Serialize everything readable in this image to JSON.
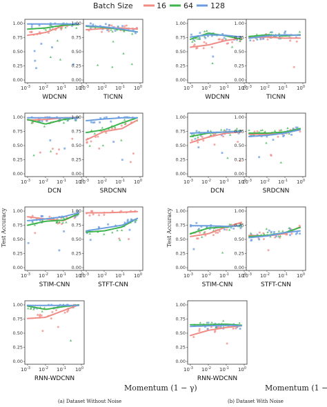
{
  "legend": {
    "title": "Batch Size",
    "entries": [
      {
        "label": "16",
        "color": "#f08a84"
      },
      {
        "label": "64",
        "color": "#3cb44b"
      },
      {
        "label": "128",
        "color": "#6a9ce0"
      }
    ]
  },
  "ylabel": "Test Accuracy",
  "xlabel": "Momentum (1 − γ)",
  "captions": {
    "a": "(a) Dataset Without Noise",
    "b": "(b) Dataset With Noise"
  },
  "chart_data": {
    "type": "scatter",
    "x_scale": "log",
    "x_ticks": [
      "10^-3",
      "10^-2",
      "10^-1",
      "10^0"
    ],
    "ylim": [
      0,
      1
    ],
    "y_ticks": [
      "0.00",
      "0.25",
      "0.50",
      "0.75",
      "1.00"
    ],
    "grid": false,
    "legend_position": "top",
    "groups": [
      {
        "caption": "(a) Dataset Without Noise",
        "panels": [
          {
            "title": "WDCNN",
            "curves": {
              "16": [
                [
                  0.001,
                  0.79
                ],
                [
                  0.01,
                  0.84
                ],
                [
                  0.1,
                  0.96
                ],
                [
                  0.7,
                  0.99
                ]
              ],
              "64": [
                [
                  0.001,
                  0.9
                ],
                [
                  0.01,
                  0.92
                ],
                [
                  0.1,
                  0.97
                ],
                [
                  0.7,
                  0.98
                ]
              ],
              "128": [
                [
                  0.001,
                  0.99
                ],
                [
                  0.01,
                  0.99
                ],
                [
                  0.1,
                  0.99
                ],
                [
                  0.7,
                  0.99
                ]
              ]
            }
          },
          {
            "title": "TICNN",
            "curves": {
              "16": [
                [
                  0.001,
                  0.89
                ],
                [
                  0.01,
                  0.91
                ],
                [
                  0.1,
                  0.92
                ],
                [
                  0.7,
                  0.9
                ]
              ],
              "64": [
                [
                  0.001,
                  0.95
                ],
                [
                  0.01,
                  0.93
                ],
                [
                  0.1,
                  0.89
                ],
                [
                  0.7,
                  0.85
                ]
              ],
              "128": [
                [
                  0.001,
                  0.96
                ],
                [
                  0.01,
                  0.94
                ],
                [
                  0.1,
                  0.9
                ],
                [
                  0.7,
                  0.85
                ]
              ]
            }
          },
          {
            "title": "DCN",
            "curves": {
              "16": [
                [
                  0.001,
                  0.95
                ],
                [
                  0.01,
                  0.96
                ],
                [
                  0.1,
                  0.99
                ],
                [
                  0.7,
                  1.0
                ]
              ],
              "64": [
                [
                  0.001,
                  0.96
                ],
                [
                  0.01,
                  0.88
                ],
                [
                  0.1,
                  0.96
                ],
                [
                  0.7,
                  1.0
                ]
              ],
              "128": [
                [
                  0.001,
                  0.99
                ],
                [
                  0.01,
                  0.99
                ],
                [
                  0.1,
                  0.99
                ],
                [
                  0.7,
                  0.99
                ]
              ]
            }
          },
          {
            "title": "SRDCNN",
            "curves": {
              "16": [
                [
                  0.001,
                  0.6
                ],
                [
                  0.01,
                  0.75
                ],
                [
                  0.1,
                  0.8
                ],
                [
                  0.7,
                  0.95
                ]
              ],
              "64": [
                [
                  0.001,
                  0.73
                ],
                [
                  0.01,
                  0.78
                ],
                [
                  0.1,
                  0.9
                ],
                [
                  0.7,
                  0.99
                ]
              ],
              "128": [
                [
                  0.001,
                  0.94
                ],
                [
                  0.01,
                  0.97
                ],
                [
                  0.1,
                  0.99
                ],
                [
                  0.7,
                  0.99
                ]
              ]
            }
          },
          {
            "title": "STIM-CNN",
            "curves": {
              "16": [
                [
                  0.001,
                  0.9
                ],
                [
                  0.01,
                  0.86
                ],
                [
                  0.1,
                  0.83
                ],
                [
                  0.7,
                  0.95
                ]
              ],
              "64": [
                [
                  0.001,
                  0.75
                ],
                [
                  0.01,
                  0.82
                ],
                [
                  0.1,
                  0.84
                ],
                [
                  0.7,
                  0.95
                ]
              ],
              "128": [
                [
                  0.001,
                  0.83
                ],
                [
                  0.01,
                  0.86
                ],
                [
                  0.1,
                  0.9
                ],
                [
                  0.7,
                  0.97
                ]
              ]
            }
          },
          {
            "title": "STFT-CNN",
            "curves": {
              "16": [
                [
                  0.001,
                  0.97
                ],
                [
                  0.01,
                  0.97
                ],
                [
                  0.1,
                  0.98
                ],
                [
                  0.7,
                  0.99
                ]
              ],
              "64": [
                [
                  0.001,
                  0.63
                ],
                [
                  0.01,
                  0.65
                ],
                [
                  0.1,
                  0.72
                ],
                [
                  0.7,
                  0.87
                ]
              ],
              "128": [
                [
                  0.001,
                  0.65
                ],
                [
                  0.01,
                  0.7
                ],
                [
                  0.1,
                  0.75
                ],
                [
                  0.7,
                  0.87
                ]
              ]
            }
          },
          {
            "title": "RNN-WDCNN",
            "curves": {
              "16": [
                [
                  0.001,
                  0.76
                ],
                [
                  0.01,
                  0.78
                ],
                [
                  0.1,
                  0.9
                ],
                [
                  0.7,
                  1.0
                ]
              ],
              "64": [
                [
                  0.001,
                  0.98
                ],
                [
                  0.01,
                  0.92
                ],
                [
                  0.1,
                  0.97
                ],
                [
                  0.7,
                  1.0
                ]
              ],
              "128": [
                [
                  0.001,
                  0.99
                ],
                [
                  0.01,
                  0.99
                ],
                [
                  0.1,
                  0.99
                ],
                [
                  0.7,
                  0.99
                ]
              ]
            }
          }
        ]
      },
      {
        "caption": "(b) Dataset With Noise",
        "panels": [
          {
            "title": "WDCNN",
            "curves": {
              "16": [
                [
                  0.001,
                  0.58
                ],
                [
                  0.01,
                  0.62
                ],
                [
                  0.1,
                  0.7
                ],
                [
                  0.7,
                  0.74
                ]
              ],
              "64": [
                [
                  0.001,
                  0.72
                ],
                [
                  0.01,
                  0.83
                ],
                [
                  0.1,
                  0.78
                ],
                [
                  0.7,
                  0.72
                ]
              ],
              "128": [
                [
                  0.001,
                  0.76
                ],
                [
                  0.01,
                  0.8
                ],
                [
                  0.1,
                  0.79
                ],
                [
                  0.7,
                  0.76
                ]
              ]
            }
          },
          {
            "title": "TICNN",
            "curves": {
              "16": [
                [
                  0.001,
                  0.75
                ],
                [
                  0.01,
                  0.76
                ],
                [
                  0.1,
                  0.74
                ],
                [
                  0.7,
                  0.74
                ]
              ],
              "64": [
                [
                  0.001,
                  0.77
                ],
                [
                  0.01,
                  0.8
                ],
                [
                  0.1,
                  0.78
                ],
                [
                  0.7,
                  0.8
                ]
              ],
              "128": [
                [
                  0.001,
                  0.74
                ],
                [
                  0.01,
                  0.78
                ],
                [
                  0.1,
                  0.8
                ],
                [
                  0.7,
                  0.79
                ]
              ]
            }
          },
          {
            "title": "DCN",
            "curves": {
              "16": [
                [
                  0.001,
                  0.55
                ],
                [
                  0.01,
                  0.65
                ],
                [
                  0.1,
                  0.72
                ],
                [
                  0.7,
                  0.74
                ]
              ],
              "64": [
                [
                  0.001,
                  0.66
                ],
                [
                  0.01,
                  0.72
                ],
                [
                  0.1,
                  0.74
                ],
                [
                  0.7,
                  0.76
                ]
              ],
              "128": [
                [
                  0.001,
                  0.72
                ],
                [
                  0.01,
                  0.73
                ],
                [
                  0.1,
                  0.74
                ],
                [
                  0.7,
                  0.75
                ]
              ]
            }
          },
          {
            "title": "SRDCNN",
            "curves": {
              "16": [
                [
                  0.001,
                  0.7
                ],
                [
                  0.01,
                  0.7
                ],
                [
                  0.1,
                  0.72
                ],
                [
                  0.7,
                  0.78
                ]
              ],
              "64": [
                [
                  0.001,
                  0.72
                ],
                [
                  0.01,
                  0.72
                ],
                [
                  0.1,
                  0.74
                ],
                [
                  0.7,
                  0.8
                ]
              ],
              "128": [
                [
                  0.001,
                  0.66
                ],
                [
                  0.01,
                  0.68
                ],
                [
                  0.1,
                  0.72
                ],
                [
                  0.7,
                  0.78
                ]
              ]
            }
          },
          {
            "title": "STIM-CNN",
            "curves": {
              "16": [
                [
                  0.001,
                  0.55
                ],
                [
                  0.01,
                  0.6
                ],
                [
                  0.1,
                  0.72
                ],
                [
                  0.7,
                  0.8
                ]
              ],
              "64": [
                [
                  0.001,
                  0.6
                ],
                [
                  0.01,
                  0.7
                ],
                [
                  0.1,
                  0.72
                ],
                [
                  0.7,
                  0.75
                ]
              ],
              "128": [
                [
                  0.001,
                  0.74
                ],
                [
                  0.01,
                  0.74
                ],
                [
                  0.1,
                  0.73
                ],
                [
                  0.7,
                  0.74
                ]
              ]
            }
          },
          {
            "title": "STFT-CNN",
            "curves": {
              "16": [
                [
                  0.001,
                  0.57
                ],
                [
                  0.01,
                  0.56
                ],
                [
                  0.1,
                  0.6
                ],
                [
                  0.7,
                  0.72
                ]
              ],
              "64": [
                [
                  0.001,
                  0.55
                ],
                [
                  0.01,
                  0.57
                ],
                [
                  0.1,
                  0.62
                ],
                [
                  0.7,
                  0.71
                ]
              ],
              "128": [
                [
                  0.001,
                  0.53
                ],
                [
                  0.01,
                  0.56
                ],
                [
                  0.1,
                  0.62
                ],
                [
                  0.7,
                  0.65
                ]
              ]
            }
          },
          {
            "title": "RNN-WDCNN",
            "curves": {
              "16": [
                [
                  0.001,
                  0.46
                ],
                [
                  0.01,
                  0.55
                ],
                [
                  0.1,
                  0.6
                ],
                [
                  0.7,
                  0.63
                ]
              ],
              "64": [
                [
                  0.001,
                  0.65
                ],
                [
                  0.01,
                  0.65
                ],
                [
                  0.1,
                  0.66
                ],
                [
                  0.7,
                  0.64
                ]
              ],
              "128": [
                [
                  0.001,
                  0.62
                ],
                [
                  0.01,
                  0.63
                ],
                [
                  0.1,
                  0.64
                ],
                [
                  0.7,
                  0.63
                ]
              ]
            }
          }
        ]
      }
    ]
  }
}
